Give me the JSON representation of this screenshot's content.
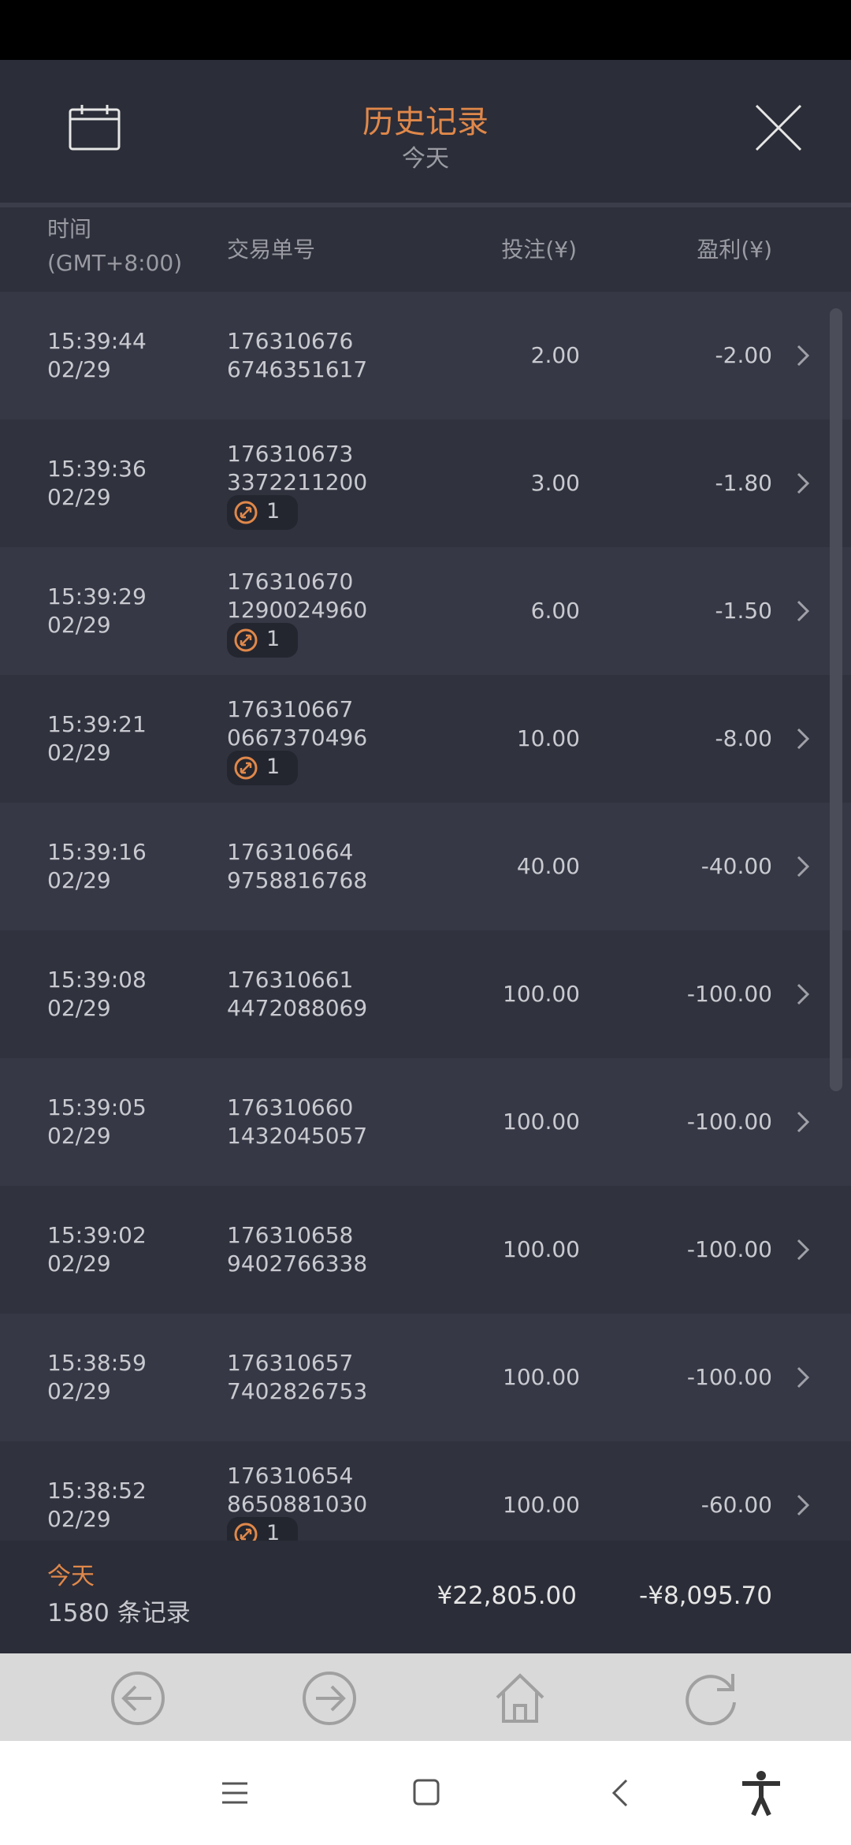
{
  "header": {
    "title": "历史记录",
    "subtitle": "今天"
  },
  "columns": {
    "time": "时间",
    "timezone": "(GMT+8:00)",
    "order_id": "交易单号",
    "bet": "投注(¥)",
    "profit": "盈利(¥)"
  },
  "rows": [
    {
      "time": "15:39:44",
      "date": "02/29",
      "id_line1": "176310676",
      "id_line2": "6746351617",
      "bet": "2.00",
      "profit": "-2.00"
    },
    {
      "time": "15:39:36",
      "date": "02/29",
      "id_line1": "176310673",
      "id_line2": "3372211200",
      "badge": "1",
      "bet": "3.00",
      "profit": "-1.80"
    },
    {
      "time": "15:39:29",
      "date": "02/29",
      "id_line1": "176310670",
      "id_line2": "1290024960",
      "badge": "1",
      "bet": "6.00",
      "profit": "-1.50"
    },
    {
      "time": "15:39:21",
      "date": "02/29",
      "id_line1": "176310667",
      "id_line2": "0667370496",
      "badge": "1",
      "bet": "10.00",
      "profit": "-8.00"
    },
    {
      "time": "15:39:16",
      "date": "02/29",
      "id_line1": "176310664",
      "id_line2": "9758816768",
      "bet": "40.00",
      "profit": "-40.00"
    },
    {
      "time": "15:39:08",
      "date": "02/29",
      "id_line1": "176310661",
      "id_line2": "4472088069",
      "bet": "100.00",
      "profit": "-100.00"
    },
    {
      "time": "15:39:05",
      "date": "02/29",
      "id_line1": "176310660",
      "id_line2": "1432045057",
      "bet": "100.00",
      "profit": "-100.00"
    },
    {
      "time": "15:39:02",
      "date": "02/29",
      "id_line1": "176310658",
      "id_line2": "9402766338",
      "bet": "100.00",
      "profit": "-100.00"
    },
    {
      "time": "15:38:59",
      "date": "02/29",
      "id_line1": "176310657",
      "id_line2": "7402826753",
      "bet": "100.00",
      "profit": "-100.00"
    },
    {
      "time": "15:38:52",
      "date": "02/29",
      "id_line1": "176310654",
      "id_line2": "8650881030",
      "badge": "1",
      "bet": "100.00",
      "profit": "-60.00"
    }
  ],
  "footer": {
    "period": "今天",
    "count": "1580 条记录",
    "total_bet": "¥22,805.00",
    "total_profit": "-¥8,095.70"
  }
}
